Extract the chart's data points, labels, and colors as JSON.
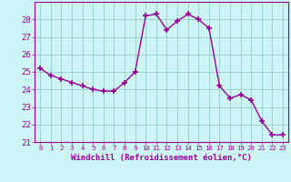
{
  "x": [
    0,
    1,
    2,
    3,
    4,
    5,
    6,
    7,
    8,
    9,
    10,
    11,
    12,
    13,
    14,
    15,
    16,
    17,
    18,
    19,
    20,
    21,
    22,
    23
  ],
  "y": [
    25.2,
    24.8,
    24.6,
    24.4,
    24.2,
    24.0,
    23.9,
    23.9,
    24.4,
    25.0,
    28.2,
    28.3,
    27.4,
    27.9,
    28.3,
    28.0,
    27.5,
    24.2,
    23.5,
    23.7,
    23.4,
    22.2,
    21.4,
    21.4
  ],
  "line_color": "#990099",
  "marker": "+",
  "marker_size": 5,
  "line_width": 1.0,
  "bg_color": "#cef5f5",
  "grid_color": "#99cccc",
  "xlabel": "Windchill (Refroidissement éolien,°C)",
  "xlabel_fontsize": 6.5,
  "tick_fontsize": 6.5,
  "ylim": [
    21,
    29
  ],
  "yticks": [
    21,
    22,
    23,
    24,
    25,
    26,
    27,
    28
  ],
  "xlim": [
    -0.5,
    23.5
  ],
  "xticks": [
    0,
    1,
    2,
    3,
    4,
    5,
    6,
    7,
    8,
    9,
    10,
    11,
    12,
    13,
    14,
    15,
    16,
    17,
    18,
    19,
    20,
    21,
    22,
    23
  ]
}
